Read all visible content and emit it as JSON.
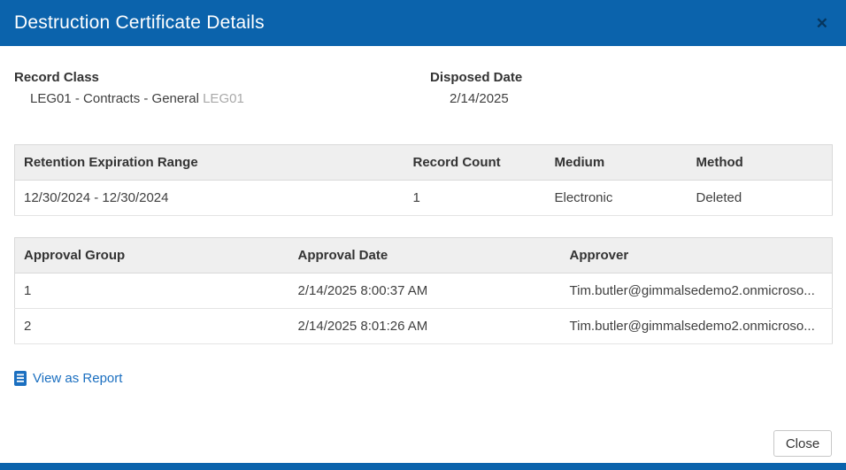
{
  "modal": {
    "title": "Destruction Certificate Details",
    "close_icon_glyph": "✕"
  },
  "summary": {
    "record_class_label": "Record Class",
    "record_class_value": "LEG01 - Contracts - General",
    "record_class_code": "LEG01",
    "disposed_date_label": "Disposed Date",
    "disposed_date_value": "2/14/2025"
  },
  "retention_table": {
    "headers": [
      "Retention Expiration Range",
      "Record Count",
      "Medium",
      "Method"
    ],
    "rows": [
      [
        "12/30/2024 - 12/30/2024",
        "1",
        "Electronic",
        "Deleted"
      ]
    ]
  },
  "approval_table": {
    "headers": [
      "Approval Group",
      "Approval Date",
      "Approver"
    ],
    "rows": [
      [
        "1",
        "2/14/2025 8:00:37 AM",
        "Tim.butler@gimmalsedemo2.onmicroso..."
      ],
      [
        "2",
        "2/14/2025 8:01:26 AM",
        "Tim.butler@gimmalsedemo2.onmicroso..."
      ]
    ]
  },
  "actions": {
    "view_report_label": "View as Report",
    "close_button_label": "Close"
  },
  "colors": {
    "header_blue": "#0b63ac",
    "link_blue": "#1b6fc0"
  }
}
